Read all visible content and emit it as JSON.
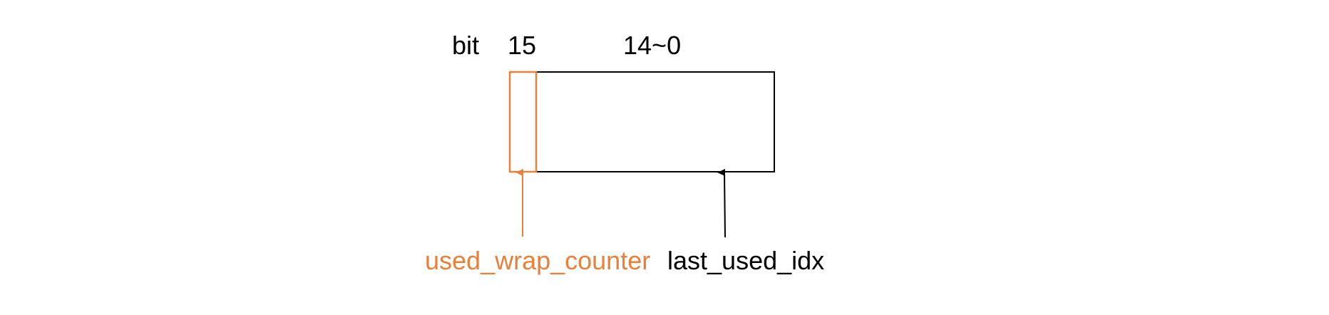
{
  "labels": {
    "bit": "bit",
    "bit_15": "15",
    "bits_14_0": "14~0",
    "used_wrap_counter": "used_wrap_counter",
    "last_used_idx": "last_used_idx"
  },
  "colors": {
    "accent": "#E8803A",
    "line": "#000000",
    "background": "#FFFFFF"
  }
}
